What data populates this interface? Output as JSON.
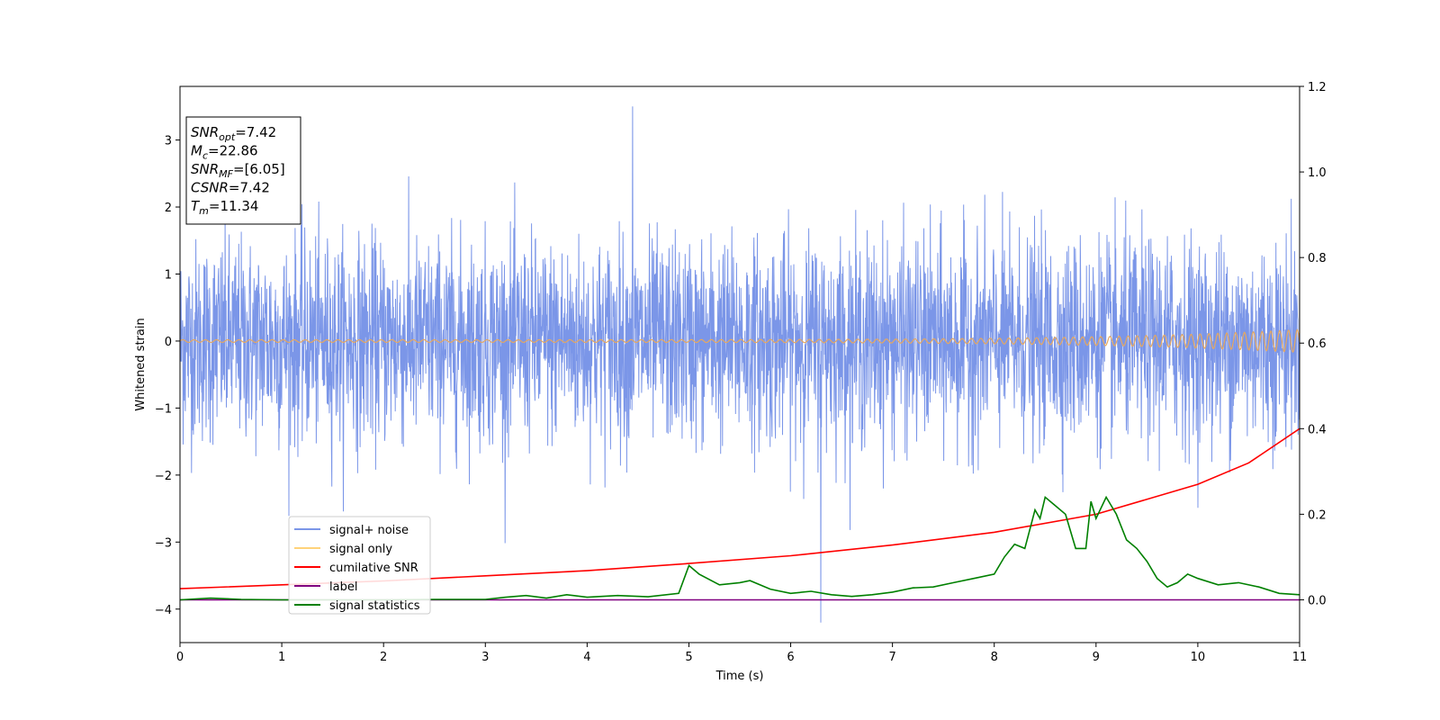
{
  "chart_data": {
    "type": "line",
    "xlabel": "Time (s)",
    "ylabel": "Whitened strain",
    "xlim": [
      0,
      11
    ],
    "ylim_left": [
      -4.5,
      3.8
    ],
    "ylim_right": [
      -0.1,
      1.2
    ],
    "x_ticks": [
      "0",
      "1",
      "2",
      "3",
      "4",
      "5",
      "6",
      "7",
      "8",
      "9",
      "10",
      "11"
    ],
    "y_left_ticks": [
      "−4",
      "−3",
      "−2",
      "−1",
      "0",
      "1",
      "2",
      "3"
    ],
    "y_right_ticks": [
      "0.0",
      "0.2",
      "0.4",
      "0.6",
      "0.8",
      "1.0",
      "1.2"
    ],
    "info_box": {
      "lines": [
        {
          "name": "SNR",
          "sub": "opt",
          "value": "=7.42"
        },
        {
          "name": "M",
          "sub": "c",
          "value": "=22.86"
        },
        {
          "name": "SNR",
          "sub": "MF",
          "value": "=[6.05]"
        },
        {
          "name": "CSNR",
          "sub": "",
          "value": "=7.42"
        },
        {
          "name": "T",
          "sub": "m",
          "value": "=11.34"
        }
      ]
    },
    "legend": {
      "position": "lower-left",
      "entries": [
        {
          "label": "signal+ noise",
          "color": "#7b96e8"
        },
        {
          "label": "signal only",
          "color": "#ffd37a"
        },
        {
          "label": "cumilative SNR",
          "color": "#ff0000"
        },
        {
          "label": "label",
          "color": "#800080"
        },
        {
          "label": "signal statistics",
          "color": "#008000"
        }
      ]
    },
    "series": [
      {
        "name": "signal+ noise",
        "axis": "left",
        "color": "#7b96e8",
        "noise_std": 0.75,
        "noise_peak": [
          3.5,
          -4.2
        ]
      },
      {
        "name": "signal only",
        "axis": "left",
        "color": "#e6a860",
        "amplitude_start": 0.02,
        "amplitude_end": 0.17
      },
      {
        "name": "cumilative SNR",
        "axis": "right",
        "color": "#ff0000",
        "x": [
          0,
          1,
          2,
          3,
          4,
          5,
          6,
          7,
          8,
          9,
          10,
          10.5,
          11
        ],
        "y": [
          0.026,
          0.035,
          0.044,
          0.056,
          0.068,
          0.085,
          0.103,
          0.128,
          0.158,
          0.2,
          0.27,
          0.32,
          0.4
        ]
      },
      {
        "name": "label",
        "axis": "right",
        "color": "#800080",
        "x": [
          0,
          11
        ],
        "y": [
          0,
          0
        ]
      },
      {
        "name": "signal statistics",
        "axis": "right",
        "color": "#008000",
        "x": [
          0,
          0.3,
          0.6,
          1,
          1.5,
          2,
          2.5,
          3,
          3.2,
          3.4,
          3.6,
          3.8,
          4,
          4.3,
          4.6,
          4.9,
          5.0,
          5.1,
          5.3,
          5.5,
          5.6,
          5.8,
          6,
          6.2,
          6.4,
          6.6,
          6.8,
          7,
          7.2,
          7.4,
          7.6,
          7.8,
          8.0,
          8.1,
          8.2,
          8.3,
          8.4,
          8.45,
          8.5,
          8.6,
          8.7,
          8.8,
          8.9,
          8.95,
          9.0,
          9.1,
          9.2,
          9.3,
          9.4,
          9.5,
          9.6,
          9.7,
          9.8,
          9.9,
          10.0,
          10.2,
          10.4,
          10.6,
          10.8,
          11.0
        ],
        "y": [
          0,
          0.004,
          0.001,
          0,
          0,
          0,
          0.001,
          0.001,
          0.006,
          0.01,
          0.004,
          0.012,
          0.006,
          0.01,
          0.007,
          0.015,
          0.08,
          0.06,
          0.035,
          0.04,
          0.045,
          0.025,
          0.015,
          0.02,
          0.012,
          0.008,
          0.012,
          0.018,
          0.028,
          0.03,
          0.04,
          0.05,
          0.06,
          0.1,
          0.13,
          0.12,
          0.21,
          0.19,
          0.24,
          0.22,
          0.2,
          0.12,
          0.12,
          0.23,
          0.19,
          0.24,
          0.2,
          0.14,
          0.12,
          0.09,
          0.05,
          0.03,
          0.04,
          0.06,
          0.05,
          0.035,
          0.04,
          0.03,
          0.015,
          0.012
        ]
      }
    ]
  }
}
